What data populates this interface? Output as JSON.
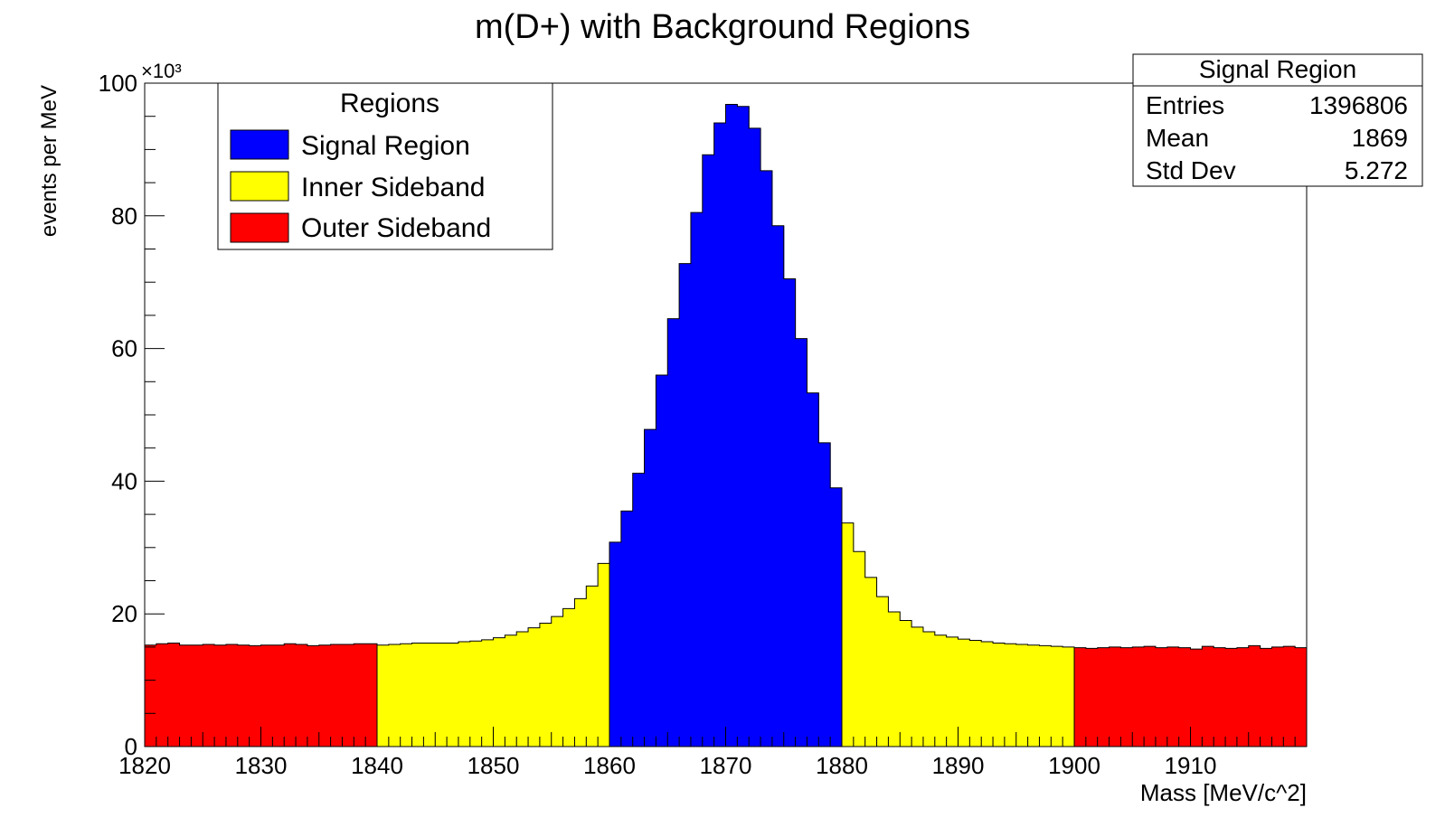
{
  "chart_data": {
    "type": "bar",
    "title": "m(D+) with Background Regions",
    "xlabel": "Mass [MeV/c^2]",
    "ylabel": "events per MeV",
    "y_multiplier": "×10³",
    "xlim": [
      1820,
      1920
    ],
    "ylim": [
      0,
      100
    ],
    "x_ticks": [
      "1820",
      "1830",
      "1840",
      "1850",
      "1860",
      "1870",
      "1880",
      "1890",
      "1900",
      "1910"
    ],
    "y_ticks": [
      "0",
      "20",
      "40",
      "60",
      "80",
      "100"
    ],
    "bin_width": 1,
    "x_start": 1820,
    "grid": false,
    "legend": {
      "title": "Regions",
      "placement": "top-left",
      "entries": [
        {
          "label": "Signal Region",
          "color": "#0000ff"
        },
        {
          "label": "Inner Sideband",
          "color": "#ffff00"
        },
        {
          "label": "Outer Sideband",
          "color": "#ff0000"
        }
      ]
    },
    "stats_box": {
      "title": "Signal Region",
      "placement": "top-right",
      "rows": [
        {
          "label": "Entries",
          "value": "1396806"
        },
        {
          "label": "Mean",
          "value": "1869"
        },
        {
          "label": "Std Dev",
          "value": "5.272"
        }
      ]
    },
    "series": [
      {
        "name": "Outer Sideband",
        "color": "#ff0000",
        "x_start": 1820,
        "values": [
          15.3,
          15.5,
          15.6,
          15.3,
          15.3,
          15.4,
          15.3,
          15.4,
          15.3,
          15.2,
          15.3,
          15.3,
          15.5,
          15.4,
          15.2,
          15.3,
          15.4,
          15.4,
          15.5,
          15.5
        ]
      },
      {
        "name": "Inner Sideband",
        "color": "#ffff00",
        "x_start": 1840,
        "values": [
          15.3,
          15.4,
          15.5,
          15.6,
          15.6,
          15.6,
          15.6,
          15.8,
          15.9,
          16.1,
          16.4,
          16.8,
          17.3,
          17.9,
          18.6,
          19.6,
          20.8,
          22.3,
          24.2,
          27.6
        ]
      },
      {
        "name": "Signal Region",
        "color": "#0000ff",
        "x_start": 1860,
        "values": [
          30.8,
          35.5,
          41.2,
          47.8,
          56.0,
          64.5,
          72.8,
          80.5,
          89.2,
          94.0,
          96.8,
          96.5,
          93.2,
          86.8,
          78.5,
          70.5,
          61.5,
          53.3,
          45.8,
          39.0
        ]
      },
      {
        "name": "Inner Sideband",
        "color": "#ffff00",
        "x_start": 1880,
        "values": [
          33.7,
          29.4,
          25.5,
          22.6,
          20.3,
          19.0,
          18.0,
          17.3,
          16.8,
          16.5,
          16.2,
          16.0,
          15.8,
          15.6,
          15.5,
          15.4,
          15.3,
          15.2,
          15.1,
          15.0
        ]
      },
      {
        "name": "Outer Sideband",
        "color": "#ff0000",
        "x_start": 1900,
        "values": [
          14.9,
          14.8,
          14.9,
          15.0,
          14.9,
          15.0,
          15.1,
          14.9,
          15.0,
          14.9,
          14.7,
          15.1,
          14.9,
          14.8,
          14.9,
          15.2,
          14.8,
          15.0,
          15.1,
          14.9
        ]
      }
    ]
  }
}
